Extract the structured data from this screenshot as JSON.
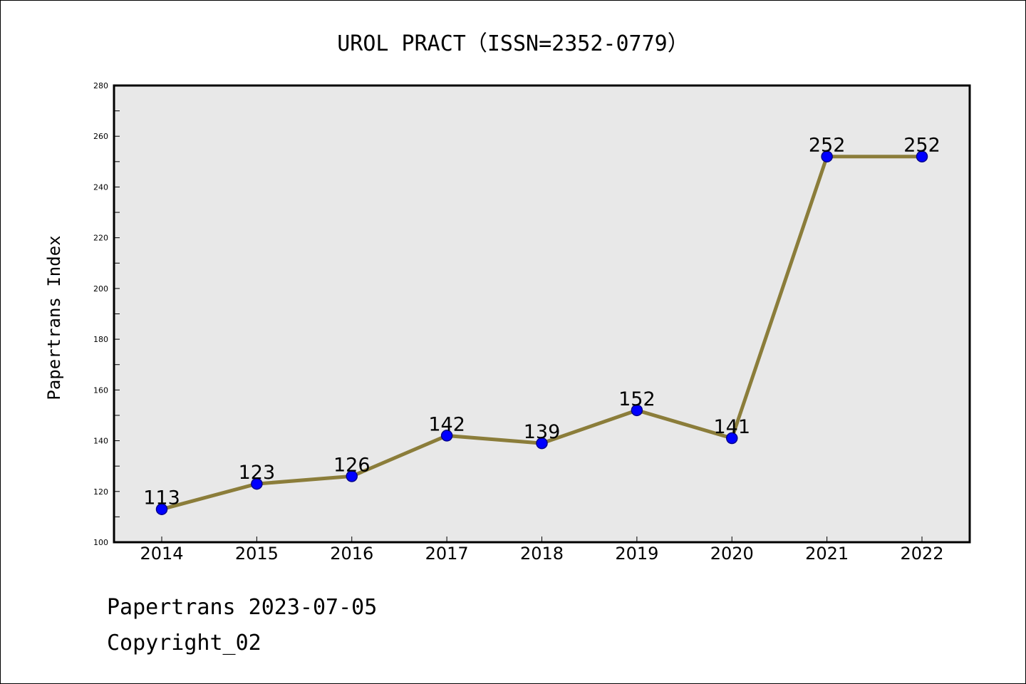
{
  "title": "UROL PRACT（ISSN=2352-0779）",
  "footer": {
    "line1": "Papertrans 2023-07-05",
    "line2": "Copyright_02"
  },
  "chart_data": {
    "type": "line",
    "categories": [
      "2014",
      "2015",
      "2016",
      "2017",
      "2018",
      "2019",
      "2020",
      "2021",
      "2022"
    ],
    "series": [
      {
        "values": [
          113,
          123,
          126,
          142,
          139,
          152,
          141,
          252,
          252
        ]
      }
    ],
    "ylabel": "Papertrans Index",
    "ylim": [
      100,
      280
    ],
    "yticks": [
      100,
      120,
      140,
      160,
      180,
      200,
      220,
      240,
      260,
      280
    ],
    "grid": false,
    "data_labels": true,
    "colors": {
      "line": "#8b7d3a",
      "marker": "#0000ff",
      "marker_edge": "#00008b",
      "plot_background": "#e8e8e8",
      "axes": "#000000"
    }
  }
}
